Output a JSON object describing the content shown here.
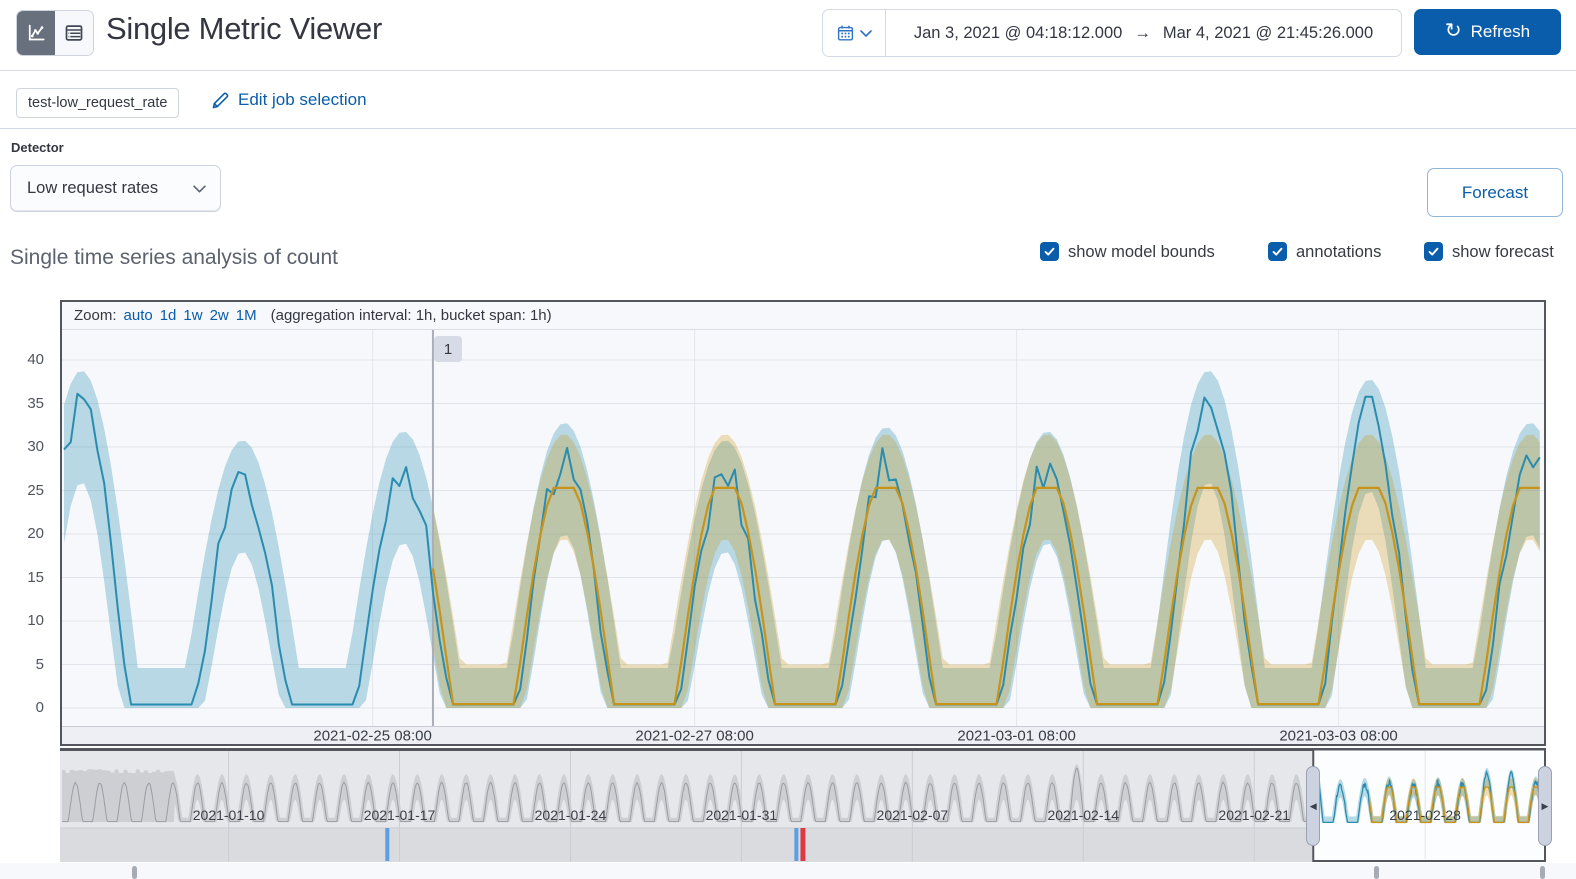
{
  "header": {
    "title": "Single Metric Viewer",
    "refresh_label": "Refresh",
    "time_range": {
      "start": "Jan 3, 2021 @ 04:18:12.000",
      "end": "Mar 4, 2021 @ 21:45:26.000"
    }
  },
  "icons": {
    "refresh_glyph": "↻",
    "range_arrow": "→",
    "handle_left": "◀",
    "handle_right": "▶"
  },
  "job_bar": {
    "badge": "test-low_request_rate",
    "edit_link": "Edit job selection"
  },
  "detector": {
    "label": "Detector",
    "selected": "Low request rates"
  },
  "forecast_button_label": "Forecast",
  "section": {
    "heading": "Single time series analysis of count",
    "checkboxes": [
      {
        "label": "show model bounds",
        "checked": true
      },
      {
        "label": "annotations",
        "checked": true
      },
      {
        "label": "show forecast",
        "checked": true
      }
    ]
  },
  "colors": {
    "accent": "#0a5dab",
    "actual_line": "#2a8cae",
    "model_band": "rgba(50,150,180,0.32)",
    "forecast_line": "#c8931a",
    "forecast_band": "rgba(200,146,15,0.28)",
    "annotation_blue": "#5c9fe3",
    "annotation_red": "#dc3a43",
    "chart_border": "#53565d",
    "context_band": "#cdcfd3",
    "context_line": "#9b9da3"
  },
  "chart_data": {
    "type": "line",
    "title": "Single time series analysis of count",
    "zoom_bar": {
      "prefix": "Zoom:",
      "links": [
        "auto",
        "1d",
        "1w",
        "2w",
        "1M"
      ],
      "suffix": "(aggregation interval: 1h, bucket span: 1h)"
    },
    "main": {
      "t0": "2021-02-23 10:00",
      "ylim": [
        0,
        42
      ],
      "y_ticks": [
        0,
        5,
        10,
        15,
        20,
        25,
        30,
        35,
        40
      ],
      "x_ticks": [
        {
          "label": "2021-02-25 08:00",
          "t": 46
        },
        {
          "label": "2021-02-27 08:00",
          "t": 94
        },
        {
          "label": "2021-03-01 08:00",
          "t": 142
        },
        {
          "label": "2021-03-03 08:00",
          "t": 190
        }
      ],
      "annotation": {
        "label": "1",
        "t": 55
      },
      "forecast_start_t": 55,
      "actual": {
        "period_h": 24,
        "phase_h": 2.6,
        "trough": 0.4,
        "jitter": 2.0,
        "peaks": [
          35,
          27,
          28,
          29,
          27,
          28.5,
          28,
          35,
          34,
          29
        ]
      },
      "model_bounds": {
        "upper_trough": 4.6,
        "upper_peak_offset": 3.8,
        "lower_trough": 0,
        "lower_peak_offset": -9
      },
      "forecast": {
        "line_trough": 0.45,
        "line_peak": 25.3,
        "upper_trough": 5,
        "upper_peak": 31.5,
        "lower_trough": 0,
        "lower_peak": 19.5
      }
    },
    "context": {
      "range": [
        "2021-01-03 04:18",
        "2021-03-04 21:45"
      ],
      "selection": [
        "2021-02-23 10:00",
        "2021-03-04 21:45"
      ],
      "x_ticks": [
        "2021-01-10",
        "2021-01-17",
        "2021-01-24",
        "2021-01-31",
        "2021-02-07",
        "2021-02-14",
        "2021-02-21",
        "2021-02-28"
      ],
      "wave": {
        "period_d": 1,
        "phase_d": 0.55,
        "line_peak": 27,
        "line_trough": 0.3,
        "band_upper_peak": 33,
        "band_lower_peak": 16,
        "spike_cycle": 41,
        "spike_value": 37,
        "block_end_day": 4.6,
        "block_top": 35
      },
      "annotation_markers": [
        {
          "time": "2021-01-16 12:00",
          "color": "blue"
        },
        {
          "time": "2021-02-02 06:00",
          "color": "blue"
        },
        {
          "time": "2021-02-02 12:00",
          "color": "red"
        }
      ],
      "bottom_markers": [
        "2021-01-06 04:00",
        "2021-02-26 00:00",
        "2021-03-04 19:00"
      ]
    }
  }
}
